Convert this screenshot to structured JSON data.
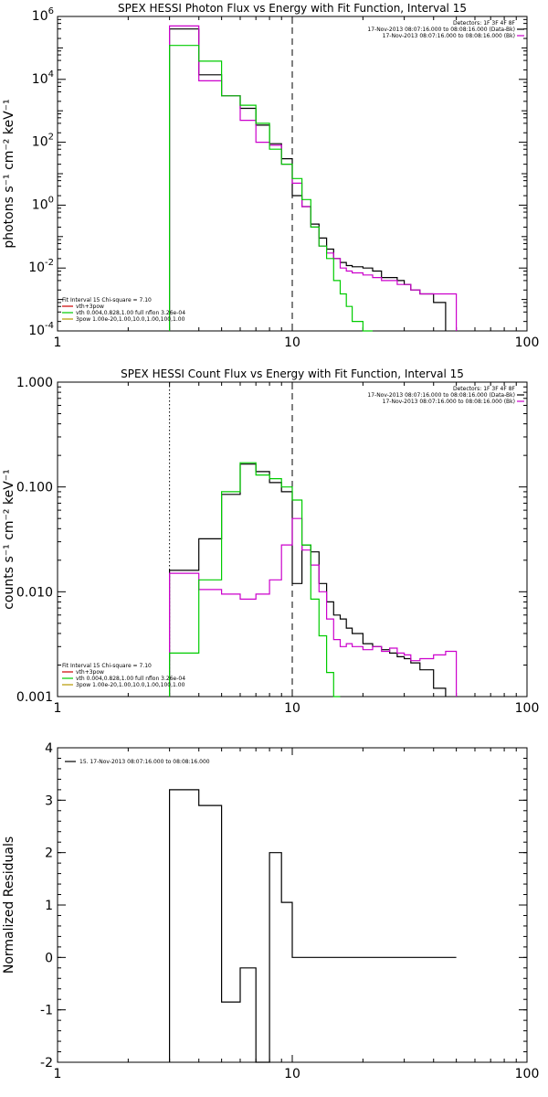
{
  "colors": {
    "black": "#000000",
    "magenta": "#cc00cc",
    "green": "#00cc00",
    "olive": "#b59a00",
    "red": "#cc0000"
  },
  "chart_data": [
    {
      "type": "line",
      "title": "SPEX HESSI Photon Flux vs Energy with Fit Function, Interval 15",
      "ylabel": "photons s⁻¹ cm⁻² keV⁻¹",
      "xscale": "log",
      "yscale": "log",
      "xlim": [
        1,
        100
      ],
      "ylim": [
        0.0001,
        1000000
      ],
      "xticks": [
        {
          "v": 1,
          "label": "1"
        },
        {
          "v": 10,
          "label": "10"
        },
        {
          "v": 100,
          "label": "100"
        }
      ],
      "yticks": [
        {
          "v": 0.0001,
          "base": "10",
          "exp": "-4"
        },
        {
          "v": 0.01,
          "base": "10",
          "exp": "-2"
        },
        {
          "v": 1,
          "base": "10",
          "exp": "0"
        },
        {
          "v": 100,
          "base": "10",
          "exp": "2"
        },
        {
          "v": 10000,
          "base": "10",
          "exp": "4"
        },
        {
          "v": 1000000,
          "base": "10",
          "exp": "6"
        }
      ],
      "vlines": [
        {
          "x": 10,
          "style": "dashed"
        }
      ],
      "legend_right": [
        "Detectors: 1F 3F 4F 8F",
        "17-Nov-2013 08:07:16.000 to 08:08:16.000 (Data-Bk)",
        "17-Nov-2013 08:07:16.000 to 08:08:16.000 (Bk)"
      ],
      "legend_left": [
        "Fit Interval 15   Chi-square = 7.10",
        "vth+3pow",
        "vth 0.004,0.828,1.00  full nflon 3.26e-04",
        "3pow 1.00e-20,1.00,10.0,1.00,100,1.00"
      ],
      "edges": [
        3,
        4,
        5,
        6,
        7,
        8,
        9,
        10,
        11,
        12,
        13,
        14,
        15,
        16,
        17,
        18,
        20,
        22,
        24,
        26,
        28,
        30,
        32,
        35,
        40,
        45,
        50
      ],
      "series": [
        {
          "name": "Data-Bk",
          "color": "#000000",
          "values": [
            400000,
            14000,
            3000,
            1200,
            350,
            90,
            30,
            2,
            0.9,
            0.25,
            0.09,
            0.04,
            0.02,
            0.015,
            0.012,
            0.011,
            0.01,
            0.008,
            0.005,
            0.005,
            0.004,
            0.003,
            0.002,
            0.0015,
            0.0008,
            null
          ]
        },
        {
          "name": "Bk",
          "color": "#cc00cc",
          "values": [
            500000,
            9000,
            3000,
            500,
            100,
            80,
            20,
            5,
            0.9,
            0.2,
            0.05,
            0.03,
            0.02,
            0.01,
            0.008,
            0.007,
            0.006,
            0.005,
            0.004,
            0.004,
            0.003,
            0.003,
            0.002,
            0.0015,
            0.0015,
            0.0015
          ]
        },
        {
          "name": "vth+3pow",
          "color": "#00cc00",
          "values": [
            120000,
            38000,
            3000,
            1500,
            400,
            60,
            20,
            7,
            1.5,
            0.2,
            0.05,
            0.02,
            0.004,
            0.0015,
            0.0006,
            0.0002,
            2e-05,
            null,
            null,
            null,
            null,
            null,
            null,
            null,
            null,
            null
          ]
        }
      ]
    },
    {
      "type": "line",
      "title": "SPEX HESSI Count Flux vs Energy with Fit Function, Interval 15",
      "ylabel": "counts s⁻¹ cm⁻² keV⁻¹",
      "xscale": "log",
      "yscale": "log",
      "xlim": [
        1,
        100
      ],
      "ylim": [
        0.001,
        1
      ],
      "xticks": [
        {
          "v": 1,
          "label": "1"
        },
        {
          "v": 10,
          "label": "10"
        },
        {
          "v": 100,
          "label": "100"
        }
      ],
      "yticks": [
        {
          "v": 0.001,
          "label": "0.001"
        },
        {
          "v": 0.01,
          "label": "0.010"
        },
        {
          "v": 0.1,
          "label": "0.100"
        },
        {
          "v": 1,
          "label": "1.000"
        }
      ],
      "vlines": [
        {
          "x": 3,
          "style": "dotted"
        },
        {
          "x": 10,
          "style": "dashed"
        }
      ],
      "legend_right": [
        "Detectors: 1F 3F 4F 8F",
        "17-Nov-2013 08:07:16.000 to 08:08:16.000 (Data-Bk)",
        "17-Nov-2013 08:07:16.000 to 08:08:16.000 (Bk)"
      ],
      "legend_left": [
        "Fit Interval 15   Chi-square = 7.10",
        "vth+3pow",
        "vth 0.004,0.828,1.00  full nflon 3.26e-04",
        "3pow 1.00e-20,1.00,10.0,1.00,100,1.00"
      ],
      "edges": [
        3,
        4,
        5,
        6,
        7,
        8,
        9,
        10,
        11,
        12,
        13,
        14,
        15,
        16,
        17,
        18,
        20,
        22,
        24,
        26,
        28,
        30,
        32,
        35,
        40,
        45,
        50
      ],
      "series": [
        {
          "name": "Data-Bk",
          "color": "#000000",
          "values": [
            0.016,
            0.032,
            0.085,
            0.165,
            0.14,
            0.11,
            0.09,
            0.012,
            0.028,
            0.024,
            0.012,
            0.008,
            0.006,
            0.0055,
            0.0045,
            0.004,
            0.0032,
            0.003,
            0.0028,
            0.0026,
            0.0024,
            0.0023,
            0.0021,
            0.0018,
            0.0012,
            null
          ]
        },
        {
          "name": "Bk",
          "color": "#cc00cc",
          "values": [
            0.015,
            0.0105,
            0.0095,
            0.0085,
            0.0095,
            0.013,
            0.028,
            0.05,
            0.025,
            0.018,
            0.01,
            0.0055,
            0.0035,
            0.003,
            0.0032,
            0.003,
            0.0028,
            0.003,
            0.0027,
            0.0029,
            0.0026,
            0.0025,
            0.0022,
            0.0023,
            0.0025,
            0.0027
          ]
        },
        {
          "name": "vth+3pow",
          "color": "#00cc00",
          "values": [
            0.0026,
            0.013,
            0.09,
            0.17,
            0.13,
            0.12,
            0.1,
            0.075,
            0.028,
            0.0085,
            0.0038,
            0.0017,
            0.0008,
            null,
            null,
            null,
            null,
            null,
            null,
            null,
            null,
            null,
            null,
            null,
            null,
            null
          ]
        }
      ]
    },
    {
      "type": "line",
      "title": "",
      "ylabel": "Normalized Residuals",
      "xscale": "log",
      "yscale": "linear",
      "xlim": [
        1,
        100
      ],
      "ylim": [
        -2,
        4
      ],
      "xticks": [
        {
          "v": 1,
          "label": "1"
        },
        {
          "v": 10,
          "label": "10"
        },
        {
          "v": 100,
          "label": "100"
        }
      ],
      "yticks": [
        {
          "v": -2,
          "label": "-2"
        },
        {
          "v": -1,
          "label": "-1"
        },
        {
          "v": 0,
          "label": "0"
        },
        {
          "v": 1,
          "label": "1"
        },
        {
          "v": 2,
          "label": "2"
        },
        {
          "v": 3,
          "label": "3"
        },
        {
          "v": 4,
          "label": "4"
        }
      ],
      "legend_left": [
        "15. 17-Nov-2013 08:07:16.000 to 08:08:16.000"
      ],
      "edges": [
        3,
        4,
        5,
        6,
        7,
        8,
        9,
        10,
        50
      ],
      "series": [
        {
          "name": "15. 17-Nov-2013 08:07:16.000 to 08:08:16.000",
          "color": "#000000",
          "values": [
            3.2,
            2.9,
            -0.85,
            -0.2,
            -2.0,
            2.0,
            1.05,
            0.0
          ]
        }
      ]
    }
  ]
}
